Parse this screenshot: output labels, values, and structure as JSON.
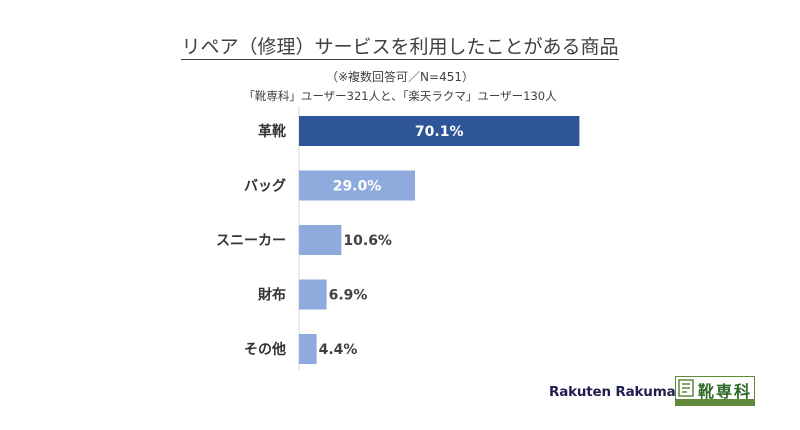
{
  "header": {
    "title": "リペア（修理）サービスを利用したことがある商品",
    "subtitle": "（※複数回答可／N=451）",
    "note": "「靴専科」ユーザー321人と、「楽天ラクマ」ユーザー130人"
  },
  "chart_data": {
    "type": "bar",
    "orientation": "horizontal",
    "categories": [
      "革靴",
      "バッグ",
      "スニーカー",
      "財布",
      "その他"
    ],
    "values": [
      70.1,
      29.0,
      10.6,
      6.9,
      4.4
    ],
    "data_labels": [
      "70.1%",
      "29.0%",
      "10.6%",
      "6.9%",
      "4.4%"
    ],
    "title": "リペア（修理）サービスを利用したことがある商品",
    "xlabel": "",
    "ylabel": "",
    "xlim": [
      0,
      100
    ],
    "grid": false,
    "legend": "none",
    "colors": {
      "highlight": "#2e5597",
      "default": "#8faadc",
      "axis": "#d9d9d9",
      "label_inside": "#ffffff",
      "label_outside": "#404040"
    }
  },
  "logos": {
    "rakuma": "Rakuten Rakuma",
    "kutsu": "靴専科"
  }
}
